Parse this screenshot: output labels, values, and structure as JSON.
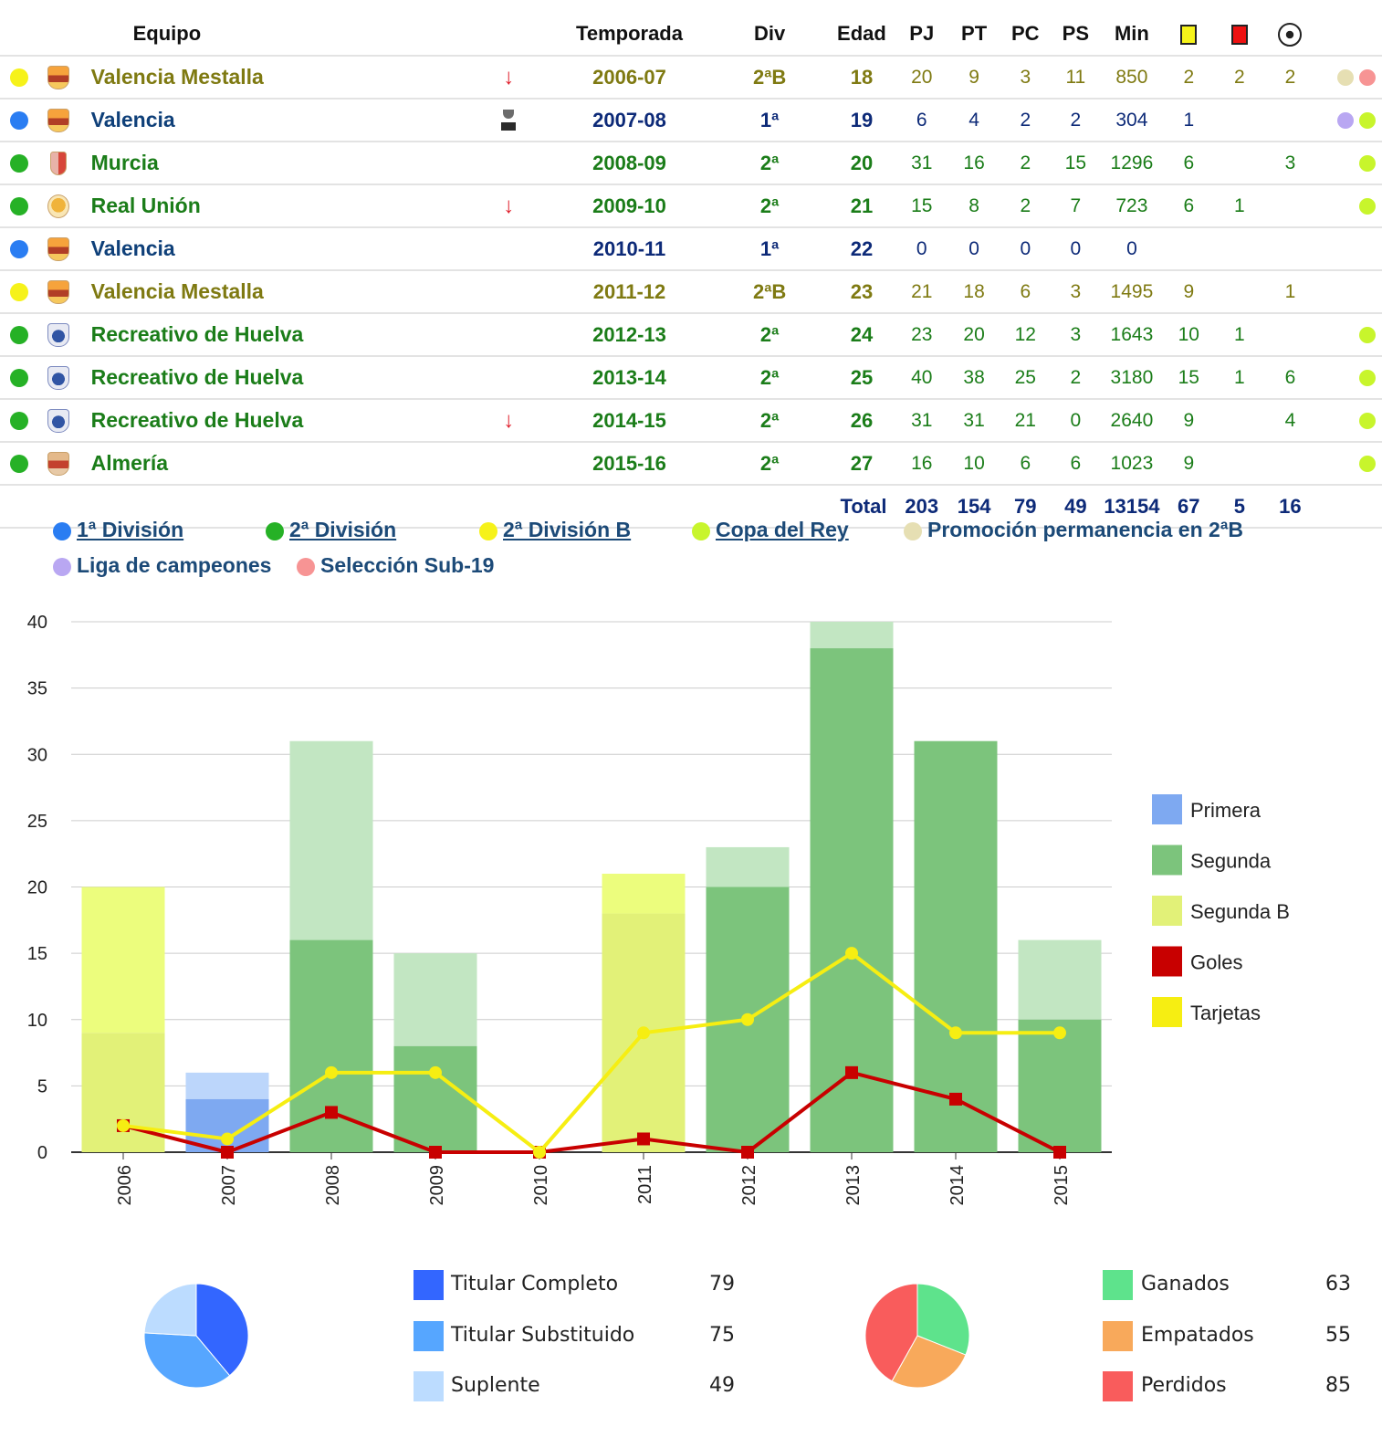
{
  "header": {
    "equipo": "Equipo",
    "temporada": "Temporada",
    "div": "Div",
    "edad": "Edad",
    "pj": "PJ",
    "pt": "PT",
    "pc": "PC",
    "ps": "PS",
    "min": "Min"
  },
  "rows": [
    {
      "dot": "#f6f21a",
      "crest": "c-val",
      "team": "Valencia Mestalla",
      "teamColor": "#7f7a12",
      "icon": "arrow",
      "season": "2006-07",
      "div": "2ªB",
      "age": "18",
      "pj": "20",
      "pt": "9",
      "pc": "3",
      "ps": "11",
      "min": "850",
      "y": "2",
      "r": "2",
      "g": "2",
      "sdots": [
        "#e6dfb3",
        "#f79494"
      ]
    },
    {
      "dot": "#2a7df2",
      "crest": "c-val",
      "team": "Valencia",
      "teamColor": "#0f4079",
      "icon": "trophy",
      "season": "2007-08",
      "div": "1ª",
      "age": "19",
      "pj": "6",
      "pt": "4",
      "pc": "2",
      "ps": "2",
      "min": "304",
      "y": "1",
      "r": "",
      "g": "",
      "sdots": [
        "#b9a7f2",
        "#c8f52c"
      ]
    },
    {
      "dot": "#26b126",
      "crest": "c-mur",
      "team": "Murcia",
      "teamColor": "#1b7d19",
      "icon": "",
      "season": "2008-09",
      "div": "2ª",
      "age": "20",
      "pj": "31",
      "pt": "16",
      "pc": "2",
      "ps": "15",
      "min": "1296",
      "y": "6",
      "r": "",
      "g": "3",
      "sdots": [
        "#c8f52c"
      ]
    },
    {
      "dot": "#26b126",
      "crest": "c-run",
      "team": "Real Unión",
      "teamColor": "#1b7d19",
      "icon": "arrow",
      "season": "2009-10",
      "div": "2ª",
      "age": "21",
      "pj": "15",
      "pt": "8",
      "pc": "2",
      "ps": "7",
      "min": "723",
      "y": "6",
      "r": "1",
      "g": "",
      "sdots": [
        "#c8f52c"
      ]
    },
    {
      "dot": "#2a7df2",
      "crest": "c-val",
      "team": "Valencia",
      "teamColor": "#0f4079",
      "icon": "",
      "season": "2010-11",
      "div": "1ª",
      "age": "22",
      "pj": "0",
      "pt": "0",
      "pc": "0",
      "ps": "0",
      "min": "0",
      "y": "",
      "r": "",
      "g": "",
      "sdots": []
    },
    {
      "dot": "#f6f21a",
      "crest": "c-val",
      "team": "Valencia Mestalla",
      "teamColor": "#7f7a12",
      "icon": "",
      "season": "2011-12",
      "div": "2ªB",
      "age": "23",
      "pj": "21",
      "pt": "18",
      "pc": "6",
      "ps": "3",
      "min": "1495",
      "y": "9",
      "r": "",
      "g": "1",
      "sdots": []
    },
    {
      "dot": "#26b126",
      "crest": "c-rec",
      "team": "Recreativo de Huelva",
      "teamColor": "#1b7d19",
      "icon": "",
      "season": "2012-13",
      "div": "2ª",
      "age": "24",
      "pj": "23",
      "pt": "20",
      "pc": "12",
      "ps": "3",
      "min": "1643",
      "y": "10",
      "r": "1",
      "g": "",
      "sdots": [
        "#c8f52c"
      ]
    },
    {
      "dot": "#26b126",
      "crest": "c-rec",
      "team": "Recreativo de Huelva",
      "teamColor": "#1b7d19",
      "icon": "",
      "season": "2013-14",
      "div": "2ª",
      "age": "25",
      "pj": "40",
      "pt": "38",
      "pc": "25",
      "ps": "2",
      "min": "3180",
      "y": "15",
      "r": "1",
      "g": "6",
      "sdots": [
        "#c8f52c"
      ]
    },
    {
      "dot": "#26b126",
      "crest": "c-rec",
      "team": "Recreativo de Huelva",
      "teamColor": "#1b7d19",
      "icon": "arrow",
      "season": "2014-15",
      "div": "2ª",
      "age": "26",
      "pj": "31",
      "pt": "31",
      "pc": "21",
      "ps": "0",
      "min": "2640",
      "y": "9",
      "r": "",
      "g": "4",
      "sdots": [
        "#c8f52c"
      ]
    },
    {
      "dot": "#26b126",
      "crest": "c-alm",
      "team": "Almería",
      "teamColor": "#1b7d19",
      "icon": "",
      "season": "2015-16",
      "div": "2ª",
      "age": "27",
      "pj": "16",
      "pt": "10",
      "pc": "6",
      "ps": "6",
      "min": "1023",
      "y": "9",
      "r": "",
      "g": "",
      "sdots": [
        "#c8f52c"
      ]
    }
  ],
  "totals": {
    "label": "Total",
    "pj": "203",
    "pt": "154",
    "pc": "79",
    "ps": "49",
    "min": "13154",
    "y": "67",
    "r": "5",
    "g": "16"
  },
  "legend": [
    {
      "label": "1ª División",
      "color": "#2a7df2",
      "link": true
    },
    {
      "label": "2ª División",
      "color": "#26b126",
      "link": true
    },
    {
      "label": "2ª División B",
      "color": "#f6f21a",
      "link": true
    },
    {
      "label": "Copa del Rey",
      "color": "#c8f52c",
      "link": true
    },
    {
      "label": "Promoción permanencia en 2ªB",
      "color": "#e6dfb3",
      "link": false
    },
    {
      "label": "Liga de campeones",
      "color": "#b9a7f2",
      "link": false
    },
    {
      "label": "Selección Sub-19",
      "color": "#f79494",
      "link": false
    }
  ],
  "chart_data": [
    {
      "type": "bar",
      "categories": [
        "2006",
        "2007",
        "2008",
        "2009",
        "2010",
        "2011",
        "2012",
        "2013",
        "2014",
        "2015"
      ],
      "ylim": [
        0,
        40
      ],
      "yticks": [
        0,
        5,
        10,
        15,
        20,
        25,
        30,
        35,
        40
      ],
      "grid": true,
      "legend_position": "right",
      "stacked_bars": {
        "league": [
          "segundaB",
          "primera",
          "segunda",
          "segunda",
          "primera",
          "segundaB",
          "segunda",
          "segunda",
          "segunda",
          "segunda"
        ],
        "starts": [
          9,
          4,
          16,
          8,
          0,
          18,
          20,
          38,
          31,
          10
        ],
        "played": [
          20,
          6,
          31,
          15,
          0,
          21,
          23,
          40,
          31,
          16
        ]
      },
      "series": [
        {
          "name": "Primera",
          "color": "#7ea9f1"
        },
        {
          "name": "Segunda",
          "color": "#7cc47c"
        },
        {
          "name": "Segunda B",
          "color": "#e2f178"
        },
        {
          "name": "Goles",
          "color": "#c80000",
          "type": "line",
          "values": [
            2,
            0,
            3,
            0,
            0,
            1,
            0,
            6,
            4,
            0
          ]
        },
        {
          "name": "Tarjetas",
          "color": "#f6ee12",
          "type": "line",
          "values": [
            2,
            1,
            6,
            6,
            0,
            9,
            10,
            15,
            9,
            9
          ]
        }
      ]
    },
    {
      "type": "pie",
      "slices": [
        {
          "label": "Titular Completo",
          "value": 79,
          "color": "#3366ff"
        },
        {
          "label": "Titular Substituido",
          "value": 75,
          "color": "#56a6ff"
        },
        {
          "label": "Suplente",
          "value": 49,
          "color": "#bcdcff"
        }
      ]
    },
    {
      "type": "pie",
      "slices": [
        {
          "label": "Ganados",
          "value": 63,
          "color": "#5ee38c"
        },
        {
          "label": "Empatados",
          "value": 55,
          "color": "#f8a95b"
        },
        {
          "label": "Perdidos",
          "value": 85,
          "color": "#f95c5c"
        }
      ]
    }
  ]
}
